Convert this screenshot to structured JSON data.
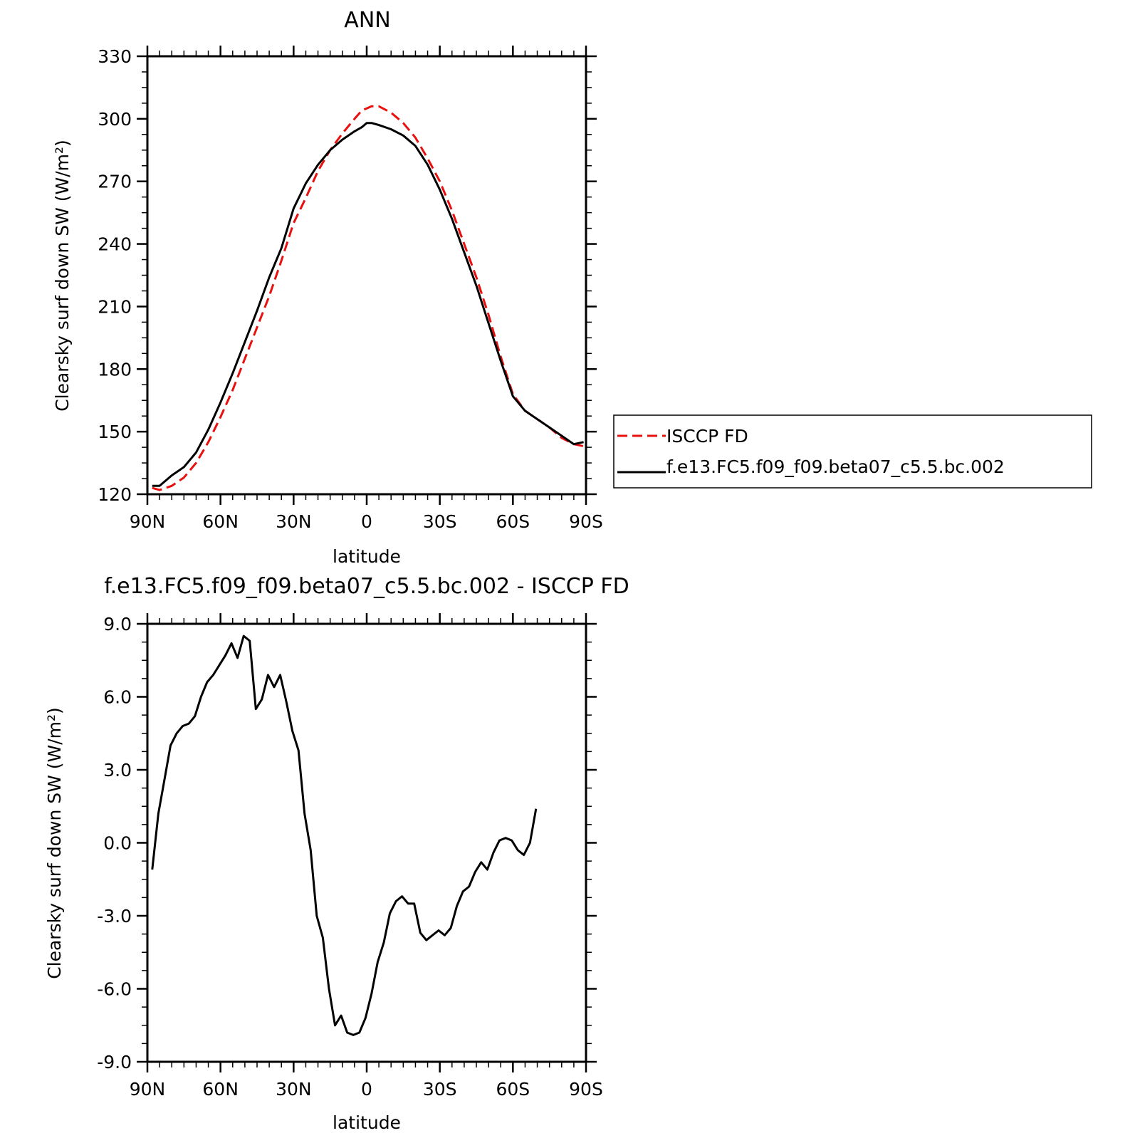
{
  "chart_data": [
    {
      "type": "line",
      "title": "ANN",
      "xlabel": "latitude",
      "ylabel": "Clearsky surf down SW (W/m²)",
      "x_ticks": [
        {
          "value": 90,
          "label": "90N"
        },
        {
          "value": 60,
          "label": "60N"
        },
        {
          "value": 30,
          "label": "30N"
        },
        {
          "value": 0,
          "label": "0"
        },
        {
          "value": -30,
          "label": "30S"
        },
        {
          "value": -60,
          "label": "60S"
        },
        {
          "value": -90,
          "label": "90S"
        }
      ],
      "y_ticks": [
        {
          "value": 120,
          "label": "120"
        },
        {
          "value": 150,
          "label": "150"
        },
        {
          "value": 180,
          "label": "180"
        },
        {
          "value": 210,
          "label": "210"
        },
        {
          "value": 240,
          "label": "240"
        },
        {
          "value": 270,
          "label": "270"
        },
        {
          "value": 300,
          "label": "300"
        },
        {
          "value": 330,
          "label": "330"
        }
      ],
      "xlim": [
        90,
        -90
      ],
      "ylim": [
        120,
        330
      ],
      "grid": false,
      "legend": "outside-right",
      "series": [
        {
          "name": "ISCCP FD",
          "color": "#e8110f",
          "dash": "dashed",
          "points": [
            [
              88,
              123
            ],
            [
              85,
              122
            ],
            [
              80,
              124
            ],
            [
              75,
              128
            ],
            [
              70,
              135
            ],
            [
              65,
              145
            ],
            [
              60,
              157
            ],
            [
              55,
              170
            ],
            [
              50,
              185
            ],
            [
              45,
              200
            ],
            [
              40,
              215
            ],
            [
              35,
              232
            ],
            [
              30,
              250
            ],
            [
              25,
              262
            ],
            [
              20,
              275
            ],
            [
              15,
              285
            ],
            [
              10,
              293
            ],
            [
              5,
              300
            ],
            [
              2,
              304
            ],
            [
              0,
              305
            ],
            [
              -2,
              306
            ],
            [
              -5,
              306
            ],
            [
              -10,
              303
            ],
            [
              -15,
              298
            ],
            [
              -20,
              291
            ],
            [
              -25,
              281
            ],
            [
              -30,
              270
            ],
            [
              -35,
              256
            ],
            [
              -40,
              240
            ],
            [
              -45,
              224
            ],
            [
              -50,
              206
            ],
            [
              -55,
              186
            ],
            [
              -60,
              168
            ],
            [
              -65,
              160
            ],
            [
              -70,
              156
            ],
            [
              -75,
              152
            ],
            [
              -80,
              147
            ],
            [
              -85,
              144
            ],
            [
              -89,
              143
            ]
          ]
        },
        {
          "name": "f.e13.FC5.f09_f09.beta07_c5.5.bc.002",
          "color": "#000000",
          "dash": "solid",
          "points": [
            [
              88,
              124
            ],
            [
              85,
              124
            ],
            [
              80,
              129
            ],
            [
              75,
              133
            ],
            [
              70,
              140
            ],
            [
              65,
              151
            ],
            [
              60,
              164
            ],
            [
              55,
              178
            ],
            [
              50,
              193
            ],
            [
              45,
              208
            ],
            [
              40,
              224
            ],
            [
              35,
              238
            ],
            [
              30,
              257
            ],
            [
              25,
              269
            ],
            [
              20,
              278
            ],
            [
              15,
              285
            ],
            [
              10,
              290
            ],
            [
              5,
              294
            ],
            [
              2,
              296
            ],
            [
              0,
              298
            ],
            [
              -2,
              298
            ],
            [
              -5,
              297
            ],
            [
              -10,
              295
            ],
            [
              -15,
              292
            ],
            [
              -20,
              287
            ],
            [
              -25,
              278
            ],
            [
              -30,
              266
            ],
            [
              -35,
              252
            ],
            [
              -40,
              236
            ],
            [
              -45,
              220
            ],
            [
              -50,
              202
            ],
            [
              -55,
              184
            ],
            [
              -60,
              167
            ],
            [
              -65,
              160
            ],
            [
              -70,
              156
            ],
            [
              -75,
              152
            ],
            [
              -80,
              148
            ],
            [
              -85,
              144
            ],
            [
              -89,
              145
            ]
          ]
        }
      ]
    },
    {
      "type": "line",
      "title": "f.e13.FC5.f09_f09.beta07_c5.5.bc.002 - ISCCP FD",
      "xlabel": "latitude",
      "ylabel": "Clearsky surf down SW (W/m²)",
      "x_ticks": [
        {
          "value": 90,
          "label": "90N"
        },
        {
          "value": 60,
          "label": "60N"
        },
        {
          "value": 30,
          "label": "30N"
        },
        {
          "value": 0,
          "label": "0"
        },
        {
          "value": -30,
          "label": "30S"
        },
        {
          "value": -60,
          "label": "60S"
        },
        {
          "value": -90,
          "label": "90S"
        }
      ],
      "y_ticks": [
        {
          "value": 9,
          "label": "9.0"
        },
        {
          "value": 6,
          "label": "6.0"
        },
        {
          "value": 3,
          "label": "3.0"
        },
        {
          "value": 0,
          "label": "0.0"
        },
        {
          "value": -3,
          "label": "-3.0"
        },
        {
          "value": -6,
          "label": "-6.0"
        },
        {
          "value": -9,
          "label": "-9.0"
        }
      ],
      "xlim": [
        90,
        -90
      ],
      "ylim": [
        -9,
        9
      ],
      "grid": false,
      "series": [
        {
          "color": "#000000",
          "dash": "solid",
          "points": [
            [
              88,
              -1.1
            ],
            [
              85.5,
              1.2
            ],
            [
              83,
              2.6
            ],
            [
              80.5,
              4.0
            ],
            [
              78,
              4.5
            ],
            [
              75.5,
              4.8
            ],
            [
              73,
              4.9
            ],
            [
              70.5,
              5.2
            ],
            [
              68,
              6.0
            ],
            [
              65.5,
              6.6
            ],
            [
              63,
              6.9
            ],
            [
              60.5,
              7.3
            ],
            [
              58,
              7.7
            ],
            [
              55.5,
              8.2
            ],
            [
              53,
              7.6
            ],
            [
              50.5,
              8.5
            ],
            [
              48,
              8.3
            ],
            [
              45.5,
              5.5
            ],
            [
              43,
              5.9
            ],
            [
              40.5,
              6.9
            ],
            [
              38,
              6.4
            ],
            [
              35.5,
              6.9
            ],
            [
              33,
              5.8
            ],
            [
              30.5,
              4.6
            ],
            [
              28,
              3.8
            ],
            [
              25.5,
              1.2
            ],
            [
              23,
              -0.3
            ],
            [
              20.5,
              -3.0
            ],
            [
              18,
              -3.9
            ],
            [
              15.5,
              -6.0
            ],
            [
              13,
              -7.5
            ],
            [
              10.5,
              -7.1
            ],
            [
              8,
              -7.8
            ],
            [
              5.5,
              -7.9
            ],
            [
              3,
              -7.8
            ],
            [
              0.5,
              -7.2
            ],
            [
              -2,
              -6.2
            ],
            [
              -4.5,
              -4.9
            ],
            [
              -7,
              -4.1
            ],
            [
              -9.5,
              -2.9
            ],
            [
              -12,
              -2.4
            ],
            [
              -14.5,
              -2.2
            ],
            [
              -17,
              -2.5
            ],
            [
              -19.5,
              -2.5
            ],
            [
              -22,
              -3.7
            ],
            [
              -24.5,
              -4.0
            ],
            [
              -27,
              -3.8
            ],
            [
              -29.5,
              -3.6
            ],
            [
              -32,
              -3.8
            ],
            [
              -34.5,
              -3.5
            ],
            [
              -37,
              -2.6
            ],
            [
              -39.5,
              -2.0
            ],
            [
              -42,
              -1.8
            ],
            [
              -44.5,
              -1.2
            ],
            [
              -47,
              -0.8
            ],
            [
              -49.5,
              -1.1
            ],
            [
              -52,
              -0.4
            ],
            [
              -54.5,
              0.1
            ],
            [
              -57,
              0.2
            ],
            [
              -59.5,
              0.1
            ],
            [
              -62,
              -0.3
            ],
            [
              -64.5,
              -0.5
            ],
            [
              -67,
              0.0
            ],
            [
              -69.5,
              1.4
            ]
          ]
        }
      ]
    }
  ]
}
